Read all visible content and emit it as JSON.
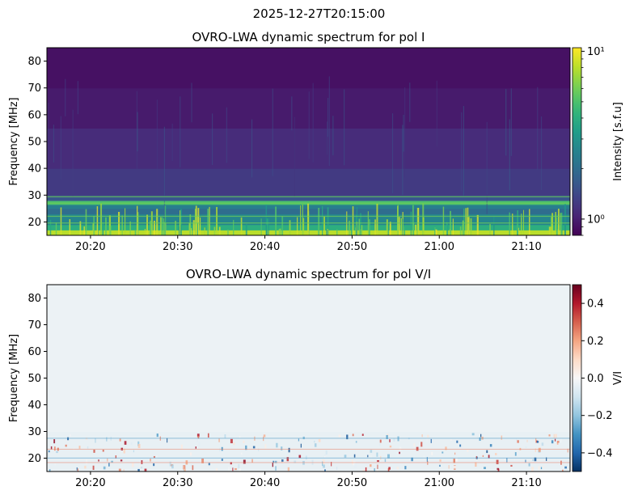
{
  "figure": {
    "suptitle": "2025-12-27T20:15:00"
  },
  "chart_data": [
    {
      "type": "heatmap",
      "title": "OVRO-LWA dynamic spectrum for pol I",
      "xlabel": "",
      "ylabel": "Frequency [MHz]",
      "xlim": [
        "20:15",
        "21:15"
      ],
      "ylim": [
        15,
        85
      ],
      "x_ticks": [
        "20:20",
        "20:30",
        "20:40",
        "20:50",
        "21:00",
        "21:10"
      ],
      "y_ticks": [
        20,
        30,
        40,
        50,
        60,
        70,
        80
      ],
      "colormap": "viridis",
      "color_scale": "log",
      "colorbar": {
        "label": "Intensity [s.f.u]",
        "range": [
          0.8,
          10.5
        ],
        "ticks": [
          {
            "value": 1,
            "label": "10⁰"
          },
          {
            "value": 10,
            "label": "10¹"
          }
        ]
      },
      "frequency_bands": [
        {
          "from": 15,
          "to": 17,
          "intensity": 8.0
        },
        {
          "from": 17,
          "to": 19,
          "intensity": 4.0
        },
        {
          "from": 19,
          "to": 23,
          "intensity": 2.6
        },
        {
          "from": 23,
          "to": 25,
          "intensity": 2.0
        },
        {
          "from": 25,
          "to": 26.5,
          "intensity": 2.4
        },
        {
          "from": 26.5,
          "to": 28,
          "intensity": 5.0
        },
        {
          "from": 28,
          "to": 30,
          "intensity": 1.6
        },
        {
          "from": 30,
          "to": 40,
          "intensity": 1.25
        },
        {
          "from": 40,
          "to": 55,
          "intensity": 1.1
        },
        {
          "from": 55,
          "to": 70,
          "intensity": 0.97
        },
        {
          "from": 70,
          "to": 85,
          "intensity": 0.9
        }
      ]
    },
    {
      "type": "heatmap",
      "title": "OVRO-LWA dynamic spectrum for pol V/I",
      "xlabel": "",
      "ylabel": "Frequency [MHz]",
      "xlim": [
        "20:15",
        "21:15"
      ],
      "ylim": [
        15,
        85
      ],
      "x_ticks": [
        "20:20",
        "20:30",
        "20:40",
        "20:50",
        "21:00",
        "21:10"
      ],
      "y_ticks": [
        20,
        30,
        40,
        50,
        60,
        70,
        80
      ],
      "colormap": "RdBu_r",
      "color_scale": "linear",
      "colorbar": {
        "label": "V/I",
        "range": [
          -0.5,
          0.5
        ],
        "ticks": [
          {
            "value": 0.4,
            "label": "0.4"
          },
          {
            "value": 0.2,
            "label": "0.2"
          },
          {
            "value": 0.0,
            "label": "0.0"
          },
          {
            "value": -0.2,
            "label": "−0.2"
          },
          {
            "value": -0.4,
            "label": "−0.4"
          }
        ]
      },
      "frequency_bands": [
        {
          "from": 15,
          "to": 30,
          "value": -0.04
        },
        {
          "from": 30,
          "to": 85,
          "value": -0.03
        }
      ]
    }
  ]
}
